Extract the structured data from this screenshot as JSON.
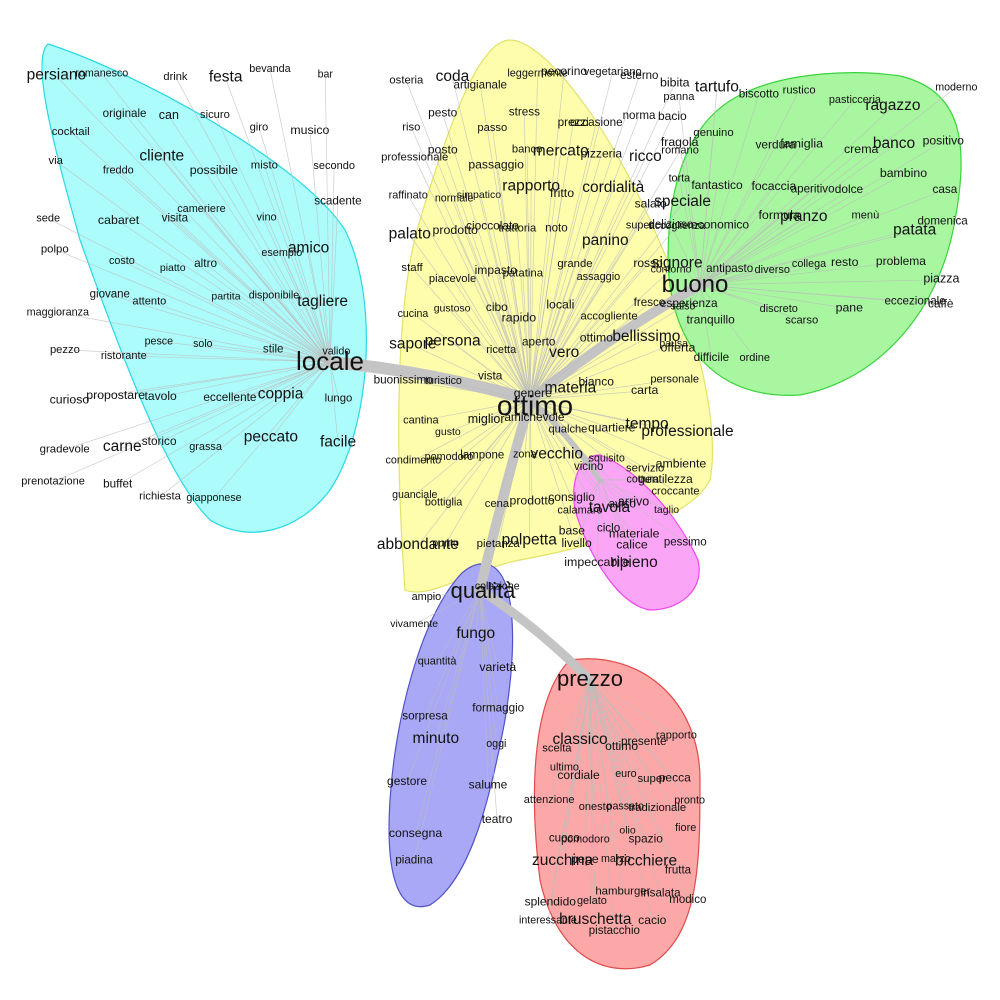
{
  "clusters": [
    {
      "id": "locale",
      "fill": "#acfcfc",
      "stroke": "#29d8e4",
      "hub": "locale",
      "words": [
        "persiano",
        "romanesco",
        "drink",
        "festa",
        "bevanda",
        "bar",
        "cocktail",
        "originale",
        "can",
        "sicuro",
        "giro",
        "musico",
        "via",
        "freddo",
        "cliente",
        "possibile",
        "misto",
        "secondo",
        "sede",
        "cabaret",
        "visita",
        "cameriere",
        "vino",
        "scadente",
        "polpo",
        "costo",
        "piatto",
        "altro",
        "esempio",
        "amico",
        "maggioranza",
        "giovane",
        "attento",
        "partita",
        "disponibile",
        "tagliere",
        "pezzo",
        "ristorante",
        "pesce",
        "solo",
        "stile",
        "valido",
        "curioso",
        "propostare",
        "tavolo",
        "eccellente",
        "coppia",
        "lungo",
        "gradevole",
        "carne",
        "storico",
        "grassa",
        "peccato",
        "facile",
        "prenotazione",
        "buffet",
        "richiesta",
        "giapponese"
      ]
    },
    {
      "id": "ottimo",
      "fill": "#fdfdac",
      "stroke": "#e2e26a",
      "hub": "ottimo",
      "words": [
        "osteria",
        "coda",
        "artigianale",
        "leggermente",
        "pecorino",
        "vegetariano",
        "esterno",
        "bibita",
        "riso",
        "pesto",
        "passo",
        "stress",
        "prezzi",
        "occasione",
        "norma",
        "bacio",
        "professionale",
        "posto",
        "passaggio",
        "banco",
        "mercato",
        "pizzeria",
        "ricco",
        "romano",
        "raffinato",
        "normale",
        "simpatico",
        "rapporto",
        "fritto",
        "cordialità",
        "salato",
        "speciale",
        "palato",
        "prodotto",
        "cioccolato",
        "trattoria",
        "noto",
        "panino",
        "super",
        "accoglienza",
        "staff",
        "piacevole",
        "impasto",
        "patatina",
        "grande",
        "assaggio",
        "rosso",
        "contorno",
        "cucina",
        "gustoso",
        "cibo",
        "rapido",
        "locali",
        "accogliente",
        "fresco",
        "salso",
        "sapore",
        "persona",
        "ricetta",
        "aperto",
        "vero",
        "ottimo",
        "bellissimo",
        "pausa",
        "buonissimo",
        "turistico",
        "vista",
        "genere",
        "materia",
        "bianco",
        "carta",
        "personale",
        "cantina",
        "gusto",
        "miglior",
        "amichevole",
        "qualche",
        "quartiere",
        "tempo",
        "professionale",
        "condimento",
        "pomodoro",
        "lampone",
        "zona",
        "vecchio",
        "squisito",
        "servizio",
        "ambiente",
        "guanciale",
        "bottiglia",
        "cena",
        "prodotto",
        "consiglio",
        "tavola",
        "arrivo",
        "croccante",
        "abbondante",
        "punto",
        "pietanza",
        "polpetta",
        "base",
        "ciclo",
        "materiale"
      ]
    },
    {
      "id": "buono",
      "fill": "#a8f6a0",
      "stroke": "#38d43c",
      "hub": "buono",
      "words": [
        "panna",
        "tartufo",
        "biscotto",
        "rustico",
        "pasticceria",
        "ragazzo",
        "moderno",
        "fragola",
        "genuino",
        "verdura",
        "famiglia",
        "crema",
        "banco",
        "positivo",
        "torta",
        "fantastico",
        "focaccia",
        "aperitivo",
        "dolce",
        "bambino",
        "casa",
        "delizioso",
        "economico",
        "formula",
        "pranzo",
        "menù",
        "patata",
        "domenica",
        "signore",
        "antipasto",
        "diverso",
        "collega",
        "resto",
        "problema",
        "piazza",
        "esperienza",
        "tranquillo",
        "discreto",
        "scarso",
        "pane",
        "eccezionale",
        "caffè",
        "offerta",
        "difficile",
        "ordine"
      ]
    },
    {
      "id": "servizio",
      "fill": "#fba5f6",
      "stroke": "#ee44ee",
      "hub": "",
      "words": [
        "vicino",
        "cottura",
        "gentilezza",
        "calamaro",
        "aviso",
        "taglio",
        "livello",
        "calice",
        "pessimo",
        "impeccabile",
        "ripieno"
      ]
    },
    {
      "id": "qualita",
      "fill": "#a8a8f6",
      "stroke": "#5252c8",
      "hub": "qualità",
      "words": [
        "ampio",
        "colazione",
        "vivamente",
        "fungo",
        "quantità",
        "varietà",
        "sorpresa",
        "formaggio",
        "minuto",
        "oggi",
        "gestore",
        "salume",
        "consegna",
        "teatro",
        "piadina"
      ]
    },
    {
      "id": "prezzo",
      "fill": "#fca8a8",
      "stroke": "#e24a4a",
      "hub": "prezzo",
      "words": [
        "scelta",
        "classico",
        "ottimo",
        "presente",
        "rapporto",
        "ultimo",
        "cordiale",
        "euro",
        "super",
        "pecca",
        "attenzione",
        "onesto",
        "passato",
        "tradizionale",
        "pronto",
        "cuoco",
        "pomodoro",
        "olio",
        "spazio",
        "fiore",
        "zucchina",
        "pepe",
        "marzo",
        "bicchiere",
        "frutta",
        "splendido",
        "gelato",
        "hamburger",
        "insalata",
        "modico",
        "interessante",
        "bruschetta",
        "pistacchio",
        "cacio"
      ]
    }
  ]
}
